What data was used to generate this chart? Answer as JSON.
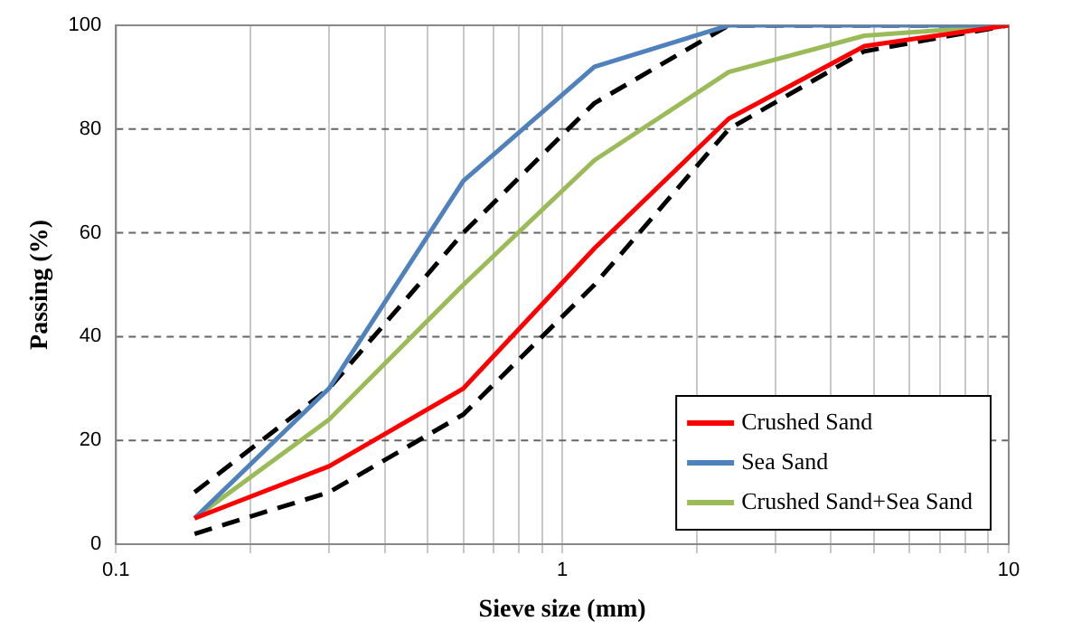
{
  "chart_data": {
    "type": "line",
    "xlabel": "Sieve size (mm)",
    "ylabel": "Passing (%)",
    "log": "x",
    "xlim": [
      0.1,
      10
    ],
    "ylim": [
      0,
      100
    ],
    "xticks": [
      0.1,
      {
        "value": 0.2,
        "label": null
      },
      {
        "value": 0.3,
        "label": null
      },
      {
        "value": 0.4,
        "label": null
      },
      {
        "value": 0.5,
        "label": null
      },
      {
        "value": 0.6,
        "label": null
      },
      {
        "value": 0.7,
        "label": null
      },
      {
        "value": 0.8,
        "label": null
      },
      {
        "value": 0.9,
        "label": null
      },
      1,
      {
        "value": 2,
        "label": null
      },
      {
        "value": 3,
        "label": null
      },
      {
        "value": 4,
        "label": null
      },
      {
        "value": 5,
        "label": null
      },
      {
        "value": 6,
        "label": null
      },
      {
        "value": 7,
        "label": null
      },
      {
        "value": 8,
        "label": null
      },
      {
        "value": 9,
        "label": null
      },
      10
    ],
    "yticks": [
      0,
      20,
      40,
      60,
      80,
      100
    ],
    "grid": true,
    "legend": "bottom right",
    "marker": "none",
    "x": [
      0.15,
      0.3,
      0.6,
      1.18,
      2.36,
      4.75,
      10
    ],
    "series": [
      {
        "name": "Crushed Sand",
        "color": "#ff0000",
        "values": [
          5,
          15,
          30,
          57,
          82,
          96,
          100
        ]
      },
      {
        "name": "Sea Sand",
        "color": "#4f81bd",
        "values": [
          5,
          30,
          70,
          92,
          100,
          100,
          100
        ]
      },
      {
        "name": "Crushed Sand+Sea Sand",
        "color": "#9bbb59",
        "values": [
          5,
          24,
          50,
          74,
          91,
          98,
          100
        ]
      },
      {
        "color": "#000000",
        "line_style": "dashed",
        "values": [
          10,
          30,
          60,
          85,
          100,
          null,
          100
        ]
      },
      {
        "color": "#000000",
        "line_style": "dashed",
        "values": [
          2,
          10,
          25,
          50,
          80,
          95,
          100
        ]
      }
    ]
  }
}
